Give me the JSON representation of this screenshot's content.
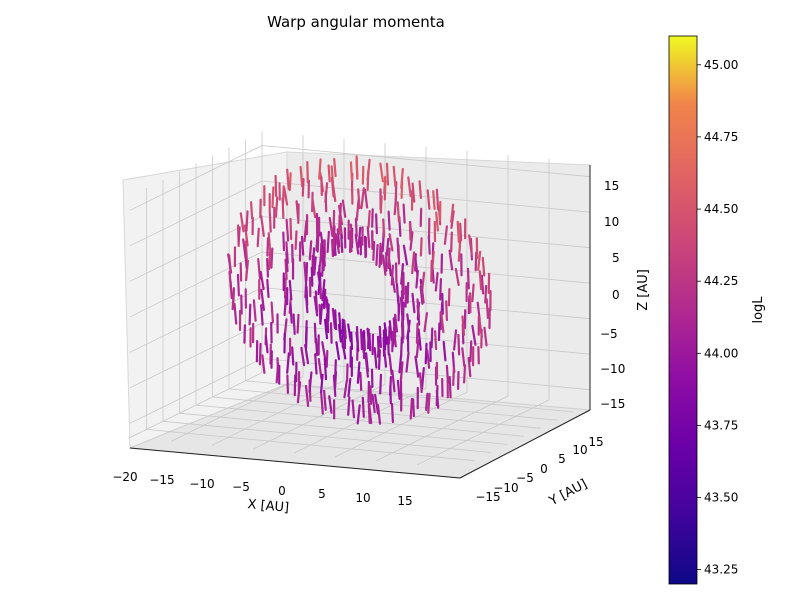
{
  "chart_data": {
    "type": "3d-quiver",
    "title": "Warp angular momenta",
    "xlabel": "X [AU]",
    "ylabel": "Y [AU]",
    "zlabel": "Z [AU]",
    "xlim": [
      -20,
      20
    ],
    "ylim": [
      -20,
      20
    ],
    "zlim": [
      -17,
      17
    ],
    "x_ticks": [
      "−20",
      "−15",
      "−10",
      "−5",
      "0",
      "5",
      "10",
      "15"
    ],
    "y_ticks": [
      "−15",
      "−10",
      "−5",
      "0",
      "5",
      "10",
      "15"
    ],
    "z_ticks": [
      "−15",
      "−10",
      "−5",
      "0",
      "5",
      "10",
      "15"
    ],
    "grid": true,
    "colormap": "plasma",
    "colorbar": {
      "label": "logL",
      "range": [
        43.2,
        45.1
      ],
      "ticks": [
        "43.25",
        "43.50",
        "43.75",
        "44.00",
        "44.25",
        "44.50",
        "44.75",
        "45.00"
      ]
    },
    "structure": "toroidal ring of short arrows, radius ~12 AU, tube radius ~5 AU, axis along Y",
    "tilt_deg": 15
  }
}
